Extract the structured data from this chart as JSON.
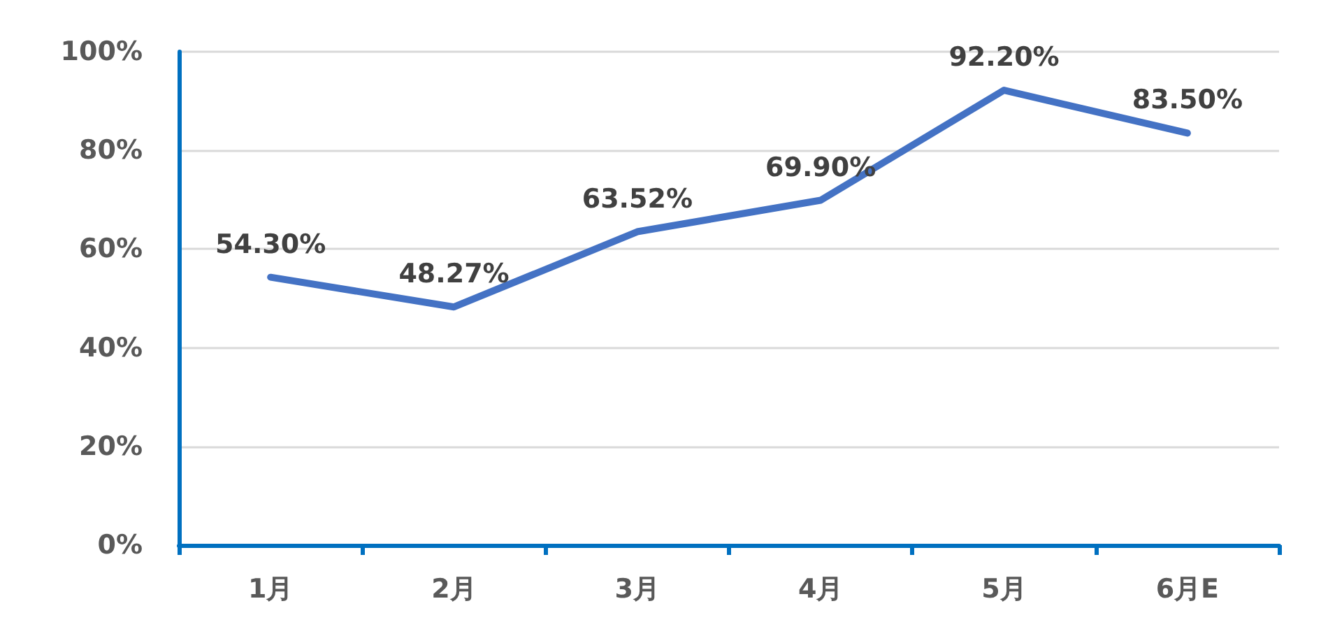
{
  "chart_data": {
    "type": "line",
    "categories": [
      "1月",
      "2月",
      "3月",
      "4月",
      "5月",
      "6月E"
    ],
    "series": [
      {
        "color": "#4472c4",
        "values": [
          54.3,
          48.27,
          63.52,
          69.9,
          92.2,
          83.5
        ],
        "value_labels": [
          "54.30%",
          "48.27%",
          "63.52%",
          "69.90%",
          "92.20%",
          "83.50%"
        ]
      }
    ],
    "ylim": [
      0,
      100
    ],
    "yticks": [
      {
        "value": 0,
        "label": "0%"
      },
      {
        "value": 20,
        "label": "20%"
      },
      {
        "value": 40,
        "label": "40%"
      },
      {
        "value": 60,
        "label": "60%"
      },
      {
        "value": 80,
        "label": "80%"
      },
      {
        "value": 100,
        "label": "100%"
      }
    ],
    "grid": "y",
    "marker": "none",
    "line_style": "solid"
  }
}
